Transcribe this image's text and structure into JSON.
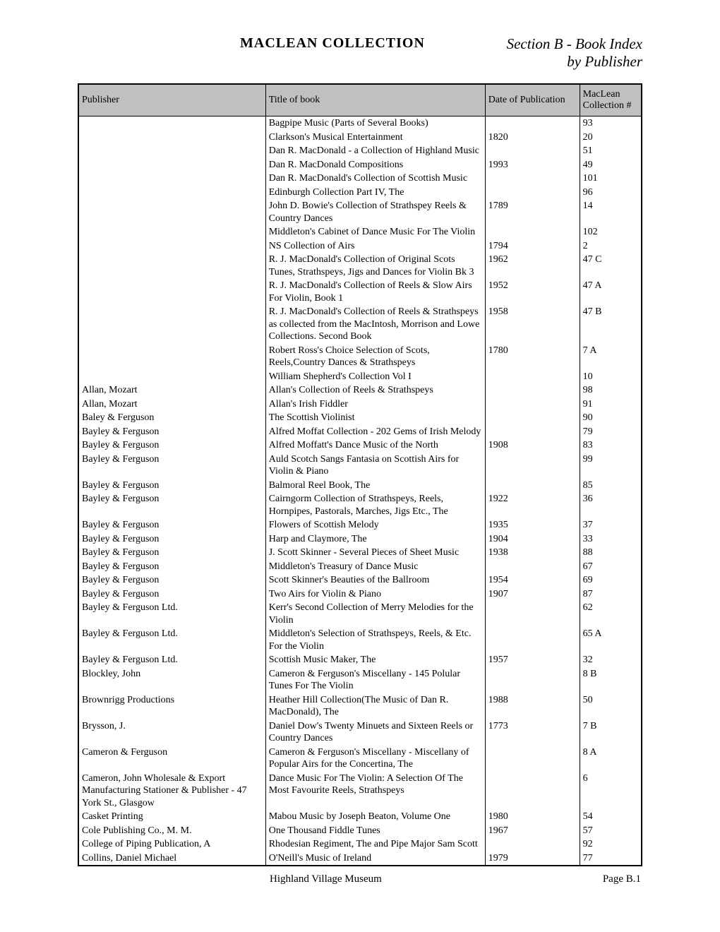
{
  "header": {
    "collection_title": "MACLEAN COLLECTION",
    "section_line1": "Section B -  Book Index",
    "section_line2": "by Publisher"
  },
  "columns": {
    "publisher": "Publisher",
    "title": "Title of book",
    "date": "Date of Publication",
    "num": "MacLean Collection #"
  },
  "rows": [
    {
      "publisher": "",
      "title": "Bagpipe Music (Parts of Several Books)",
      "date": "",
      "num": "93"
    },
    {
      "publisher": "",
      "title": "Clarkson's Musical Entertainment",
      "date": "1820",
      "num": "20"
    },
    {
      "publisher": "",
      "title": "Dan R. MacDonald - a Collection of Highland Music",
      "date": "",
      "num": "51"
    },
    {
      "publisher": "",
      "title": "Dan R. MacDonald Compositions",
      "date": "1993",
      "num": "49"
    },
    {
      "publisher": "",
      "title": "Dan R. MacDonald's Collection of Scottish Music",
      "date": "",
      "num": "101"
    },
    {
      "publisher": "",
      "title": "Edinburgh Collection Part IV, The",
      "date": "",
      "num": "96"
    },
    {
      "publisher": "",
      "title": "John D. Bowie's Collection of Strathspey Reels & Country Dances",
      "date": "1789",
      "num": "14"
    },
    {
      "publisher": "",
      "title": "Middleton's Cabinet of Dance Music For The Violin",
      "date": "",
      "num": "102"
    },
    {
      "publisher": "",
      "title": "NS Collection of Airs",
      "date": "1794",
      "num": "2"
    },
    {
      "publisher": "",
      "title": "R. J. MacDonald's Collection of Original Scots Tunes, Strathspeys, Jigs and Dances for Violin  Bk 3",
      "date": "1962",
      "num": "47 C"
    },
    {
      "publisher": "",
      "title": "R. J. MacDonald's Collection of Reels & Slow Airs For Violin, Book 1",
      "date": "1952",
      "num": "47 A"
    },
    {
      "publisher": "",
      "title": "R. J. MacDonald's Collection of Reels & Strathspeys as collected from the MacIntosh, Morrison and Lowe Collections. Second Book",
      "date": "1958",
      "num": "47 B"
    },
    {
      "publisher": "",
      "title": "Robert Ross's Choice Selection of Scots, Reels,Country Dances & Strathspeys",
      "date": "1780",
      "num": "7 A"
    },
    {
      "publisher": "",
      "title": "William Shepherd's Collection Vol I",
      "date": "",
      "num": "10"
    },
    {
      "publisher": "Allan, Mozart",
      "title": "Allan's Collection of Reels & Strathspeys",
      "date": "",
      "num": "98"
    },
    {
      "publisher": "Allan, Mozart",
      "title": "Allan's Irish Fiddler",
      "date": "",
      "num": "91"
    },
    {
      "publisher": "Baley & Ferguson",
      "title": "The Scottish Violinist",
      "date": "",
      "num": "90"
    },
    {
      "publisher": "Bayley & Ferguson",
      "title": "Alfred Moffat Collection - 202 Gems of Irish Melody",
      "date": "",
      "num": "79"
    },
    {
      "publisher": "Bayley & Ferguson",
      "title": "Alfred Moffatt's Dance Music of the North",
      "date": "1908",
      "num": "83"
    },
    {
      "publisher": "Bayley & Ferguson",
      "title": "Auld Scotch Sangs Fantasia on Scottish Airs for Violin & Piano",
      "date": "",
      "num": "99"
    },
    {
      "publisher": "Bayley & Ferguson",
      "title": "Balmoral Reel Book, The",
      "date": "",
      "num": "85"
    },
    {
      "publisher": "Bayley & Ferguson",
      "title": "Cairngorm Collection of Strathspeys, Reels, Hornpipes, Pastorals, Marches, Jigs Etc., The",
      "date": "1922",
      "num": "36"
    },
    {
      "publisher": "Bayley & Ferguson",
      "title": "Flowers of Scottish Melody",
      "date": "1935",
      "num": "37"
    },
    {
      "publisher": "Bayley & Ferguson",
      "title": "Harp and Claymore, The",
      "date": "1904",
      "num": "33"
    },
    {
      "publisher": "Bayley & Ferguson",
      "title": "J. Scott Skinner - Several Pieces of Sheet Music",
      "date": "1938",
      "num": "88"
    },
    {
      "publisher": "Bayley & Ferguson",
      "title": "Middleton's Treasury of Dance Music",
      "date": "",
      "num": "67"
    },
    {
      "publisher": "Bayley & Ferguson",
      "title": "Scott Skinner's Beauties of the Ballroom",
      "date": "1954",
      "num": "69"
    },
    {
      "publisher": "Bayley & Ferguson",
      "title": "Two Airs for Violin & Piano",
      "date": "1907",
      "num": "87"
    },
    {
      "publisher": "Bayley & Ferguson Ltd.",
      "title": "Kerr's Second Collection of Merry Melodies for the Violin",
      "date": "",
      "num": "62"
    },
    {
      "publisher": "Bayley & Ferguson Ltd.",
      "title": "Middleton's Selection of Strathspeys, Reels, & Etc. For the Violin",
      "date": "",
      "num": "65 A"
    },
    {
      "publisher": "Bayley & Ferguson Ltd.",
      "title": "Scottish Music Maker, The",
      "date": "1957",
      "num": "32"
    },
    {
      "publisher": "Blockley, John",
      "title": "Cameron & Ferguson's Miscellany - 145 Polular Tunes For The Violin",
      "date": "",
      "num": "8 B"
    },
    {
      "publisher": "Brownrigg Productions",
      "title": "Heather Hill Collection(The Music of Dan R. MacDonald), The",
      "date": "1988",
      "num": "50"
    },
    {
      "publisher": "Brysson, J.",
      "title": "Daniel Dow's Twenty Minuets and Sixteen Reels or Country Dances",
      "date": "1773",
      "num": "7 B"
    },
    {
      "publisher": "Cameron & Ferguson",
      "title": "Cameron & Ferguson's Miscellany - Miscellany of Popular Airs for the Concertina, The",
      "date": "",
      "num": "8 A"
    },
    {
      "publisher": "Cameron, John Wholesale & Export Manufacturing Stationer & Publisher - 47 York St., Glasgow",
      "title": "Dance Music For The  Violin:  A Selection Of The Most Favourite Reels, Strathspeys",
      "date": "",
      "num": "6"
    },
    {
      "publisher": "Casket Printing",
      "title": "Mabou Music by Joseph Beaton, Volume One",
      "date": "1980",
      "num": "54"
    },
    {
      "publisher": "Cole Publishing Co., M. M.",
      "title": "One Thousand Fiddle Tunes",
      "date": "1967",
      "num": "57"
    },
    {
      "publisher": "College of Piping Publication, A",
      "title": "Rhodesian Regiment, The and Pipe Major Sam Scott",
      "date": "",
      "num": "92"
    },
    {
      "publisher": "Collins, Daniel Michael",
      "title": "O'Neill's Music of Ireland",
      "date": "1979",
      "num": "77"
    }
  ],
  "footer": {
    "left": "Highland Village Museum",
    "right": "Page B.1"
  }
}
